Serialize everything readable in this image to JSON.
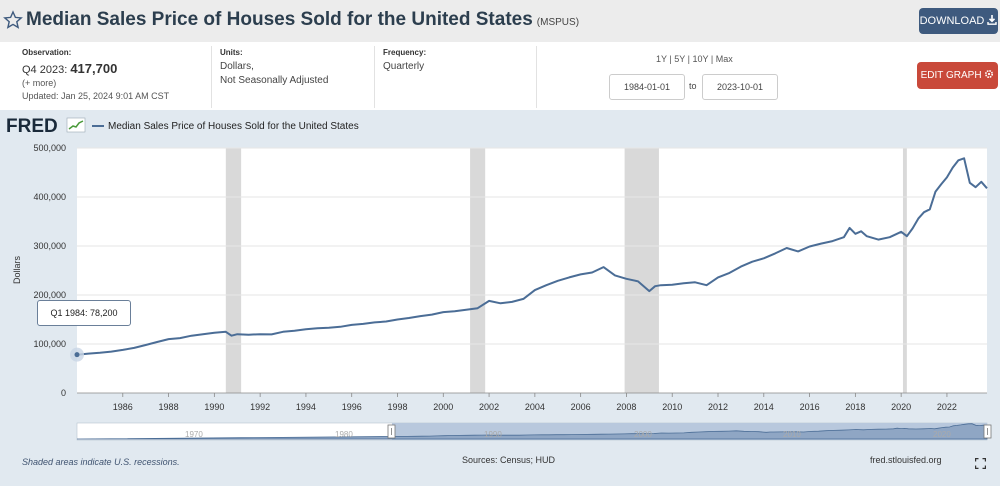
{
  "header": {
    "title": "Median Sales Price of Houses Sold for the United States",
    "series_id": "(MSPUS)",
    "download_label": "DOWNLOAD",
    "download_icon": "download-icon",
    "star_icon": "star-icon"
  },
  "info": {
    "observation_label": "Observation:",
    "observation_period": "Q4 2023:",
    "observation_value": "417,700",
    "more_label": "(+ more)",
    "updated": "Updated: Jan 25, 2024 9:01 AM CST",
    "units_label": "Units:",
    "units_line1": "Dollars,",
    "units_line2": "Not Seasonally Adjusted",
    "frequency_label": "Frequency:",
    "frequency_value": "Quarterly"
  },
  "range": {
    "link_1y": "1Y",
    "link_5y": "5Y",
    "link_10y": "10Y",
    "link_max": "Max",
    "separator": "|",
    "start_date": "1984-01-01",
    "to_label": "to",
    "end_date": "2023-10-01"
  },
  "edit_graph_label": "EDIT GRAPH",
  "fred_logo_text": "FRED",
  "tooltip": {
    "label": "Q1 1984:",
    "value": "78,200"
  },
  "footer": {
    "recession_note": "Shaded areas indicate U.S. recessions.",
    "sources": "Sources: Census; HUD",
    "url": "fred.stlouisfed.org"
  },
  "colors": {
    "line": "#4b6d96",
    "recession": "#d9d9d9",
    "panel": "#e1e9f0",
    "download_bg": "#3e5a7e",
    "edit_bg": "#c9493a"
  },
  "chart_data": {
    "type": "line",
    "title": "",
    "legend": "Median Sales Price of Houses Sold for the United States",
    "xlabel": "",
    "ylabel": "Dollars",
    "xlim": [
      1984.0,
      2023.75
    ],
    "ylim": [
      0,
      500000
    ],
    "y_ticks": [
      0,
      100000,
      200000,
      300000,
      400000,
      500000
    ],
    "y_tick_labels": [
      "0",
      "100,000",
      "200,000",
      "300,000",
      "400,000",
      "500,000"
    ],
    "x_ticks": [
      1986,
      1988,
      1990,
      1992,
      1994,
      1996,
      1998,
      2000,
      2002,
      2004,
      2006,
      2008,
      2010,
      2012,
      2014,
      2016,
      2018,
      2020,
      2022
    ],
    "x_tick_labels": [
      "1986",
      "1988",
      "1990",
      "1992",
      "1994",
      "1996",
      "1998",
      "2000",
      "2002",
      "2004",
      "2006",
      "2008",
      "2010",
      "2012",
      "2014",
      "2016",
      "2018",
      "2020",
      "2022"
    ],
    "recessions": [
      [
        1990.5,
        1991.17
      ],
      [
        2001.17,
        2001.83
      ],
      [
        2007.92,
        2009.42
      ],
      [
        2020.08,
        2020.25
      ]
    ],
    "series": [
      {
        "name": "Median Sales Price of Houses Sold for the United States",
        "x": [
          1984.0,
          1984.5,
          1985.0,
          1985.5,
          1986.0,
          1986.5,
          1987.0,
          1987.5,
          1988.0,
          1988.5,
          1989.0,
          1989.5,
          1990.0,
          1990.5,
          1990.75,
          1991.0,
          1991.5,
          1992.0,
          1992.5,
          1993.0,
          1993.5,
          1994.0,
          1994.5,
          1995.0,
          1995.5,
          1996.0,
          1996.5,
          1997.0,
          1997.5,
          1998.0,
          1998.5,
          1999.0,
          1999.5,
          2000.0,
          2000.5,
          2001.0,
          2001.5,
          2002.0,
          2002.5,
          2003.0,
          2003.5,
          2004.0,
          2004.5,
          2005.0,
          2005.5,
          2006.0,
          2006.5,
          2007.0,
          2007.5,
          2008.0,
          2008.5,
          2009.0,
          2009.25,
          2009.5,
          2010.0,
          2010.5,
          2011.0,
          2011.5,
          2012.0,
          2012.5,
          2013.0,
          2013.5,
          2014.0,
          2014.5,
          2015.0,
          2015.5,
          2016.0,
          2016.5,
          2017.0,
          2017.5,
          2017.75,
          2018.0,
          2018.25,
          2018.5,
          2019.0,
          2019.5,
          2020.0,
          2020.25,
          2020.5,
          2020.75,
          2021.0,
          2021.25,
          2021.5,
          2021.75,
          2022.0,
          2022.25,
          2022.5,
          2022.75,
          2023.0,
          2023.25,
          2023.5,
          2023.75
        ],
        "y": [
          78200,
          80500,
          82000,
          84500,
          88000,
          92000,
          98000,
          104000,
          110000,
          112000,
          117000,
          120000,
          123000,
          125000,
          117000,
          120000,
          119000,
          120000,
          119500,
          125000,
          127000,
          130000,
          132000,
          133000,
          135000,
          139000,
          141000,
          144000,
          146000,
          150000,
          153000,
          157000,
          160000,
          165000,
          167000,
          170000,
          173000,
          188000,
          183000,
          186000,
          192000,
          210000,
          220000,
          229000,
          236000,
          242000,
          246000,
          257000,
          240000,
          233000,
          228000,
          208000,
          218000,
          220000,
          221000,
          224000,
          226000,
          220000,
          236000,
          245000,
          258000,
          268000,
          275000,
          285000,
          296000,
          289000,
          299000,
          305000,
          310000,
          318000,
          337000,
          325000,
          330000,
          320000,
          313000,
          318000,
          329000,
          320000,
          336000,
          356000,
          369000,
          375000,
          411000,
          426000,
          440000,
          460000,
          475000,
          479000,
          429000,
          420000,
          431000,
          417700
        ]
      }
    ]
  }
}
